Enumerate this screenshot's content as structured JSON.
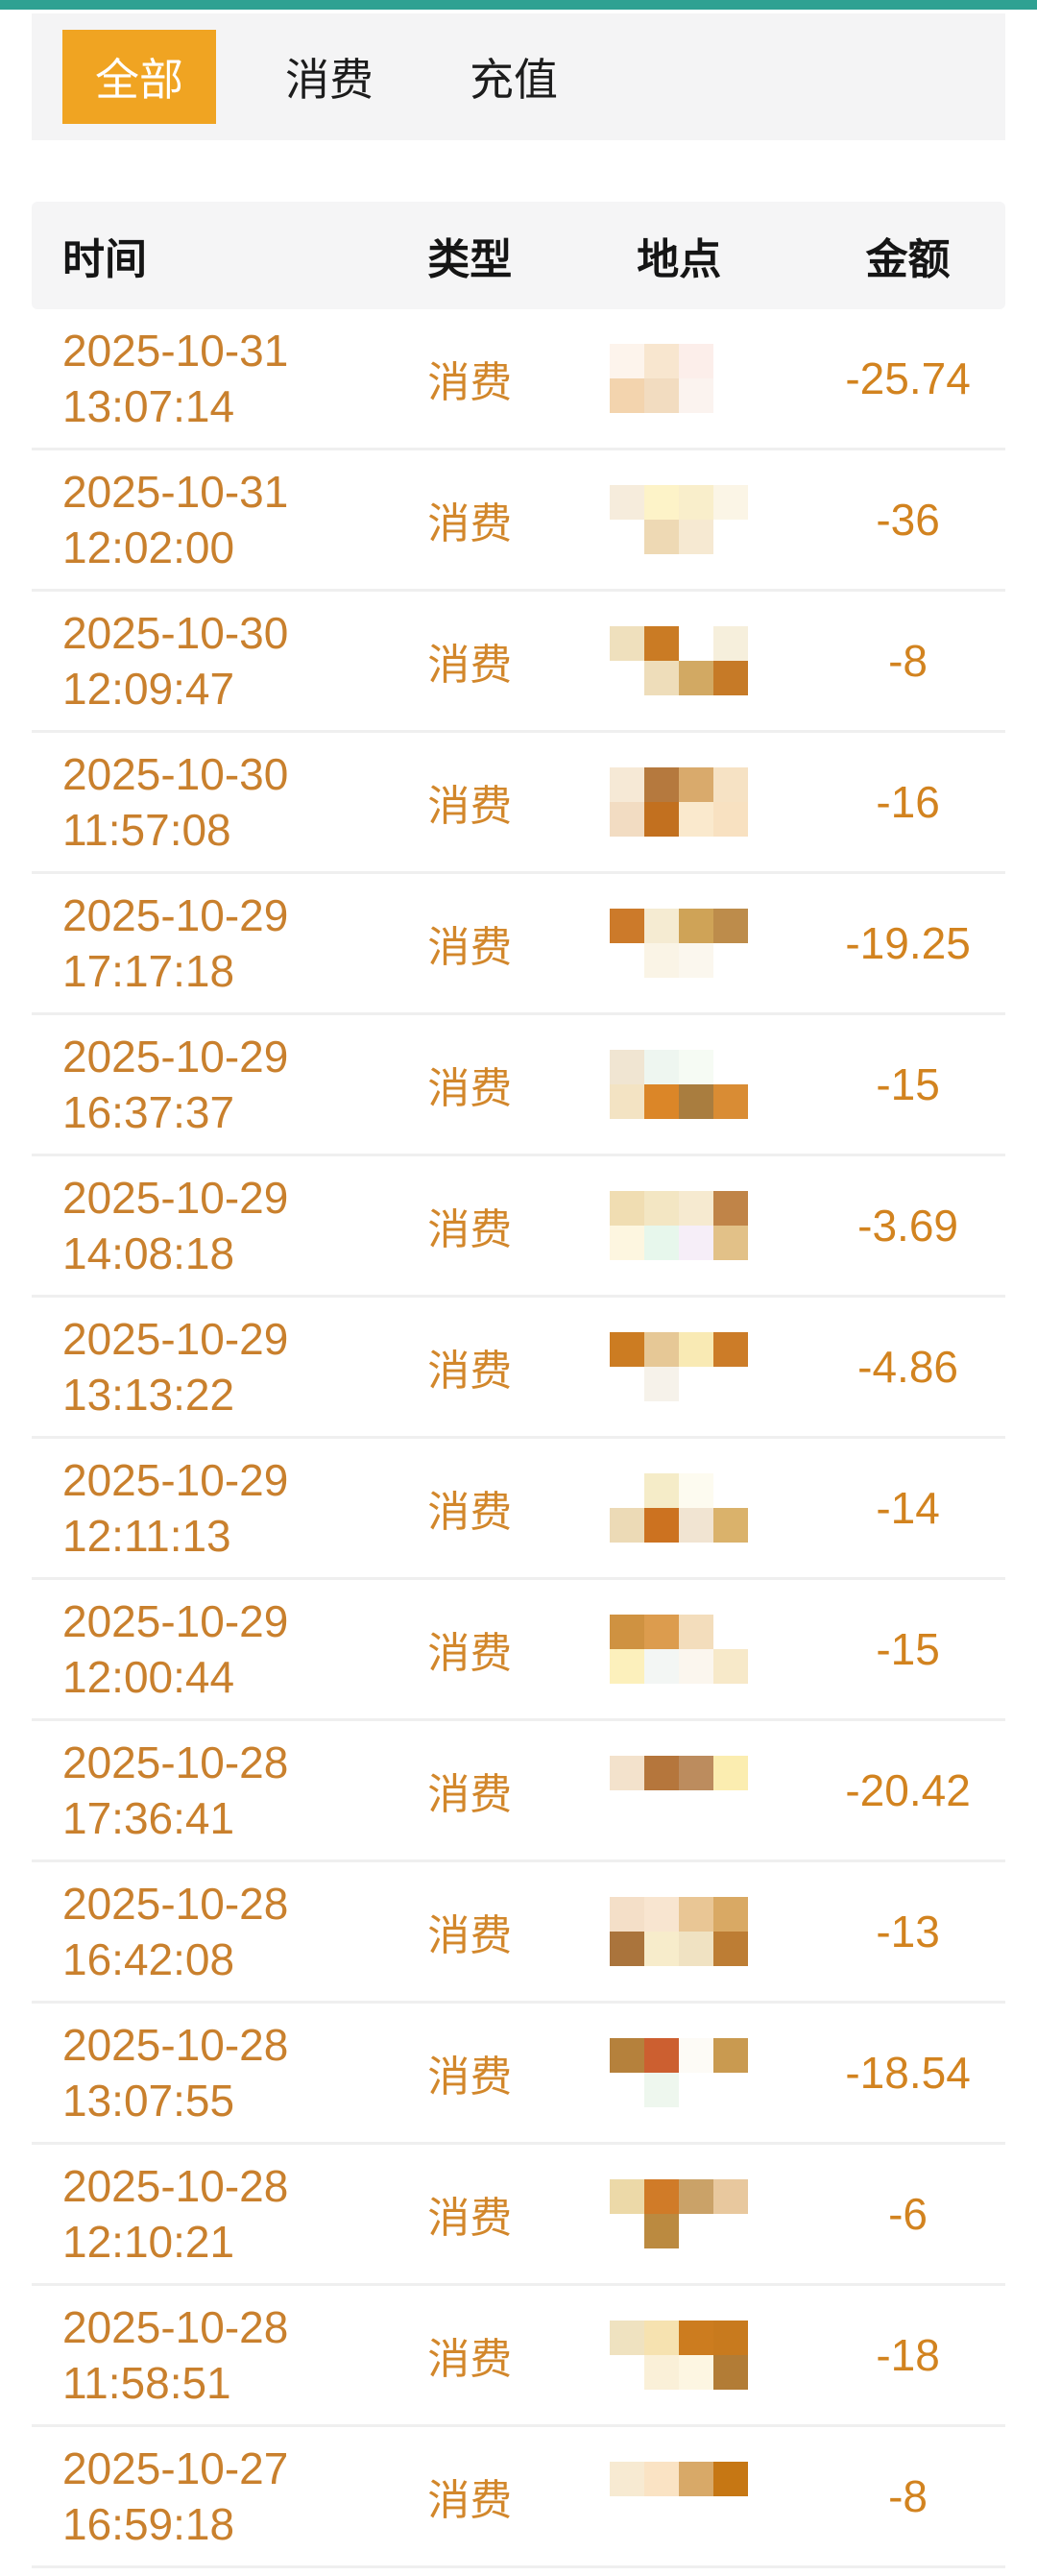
{
  "tabs": {
    "all": "全部",
    "consume": "消费",
    "recharge": "充值"
  },
  "table": {
    "headers": {
      "time": "时间",
      "type": "类型",
      "place": "地点",
      "amount": "金额"
    }
  },
  "rows": [
    {
      "date": "2025-10-31",
      "time": "13:07:14",
      "type": "消费",
      "place_redacted": true,
      "amount": "-25.74",
      "mosaic": [
        "#fdf4ec",
        "#f8e6cf",
        "#fceeea",
        "transparent",
        "#f3d4ae",
        "#f2dcc0",
        "#fbf3ef",
        "transparent"
      ]
    },
    {
      "date": "2025-10-31",
      "time": "12:02:00",
      "type": "消费",
      "place_redacted": true,
      "amount": "-36",
      "mosaic": [
        "#f6ecdc",
        "#fdf3c8",
        "#f9eecb",
        "#fbf5e6",
        "transparent",
        "#eed9b4",
        "#f6e9d2",
        "transparent"
      ]
    },
    {
      "date": "2025-10-30",
      "time": "12:09:47",
      "type": "消费",
      "place_redacted": true,
      "amount": "-8",
      "mosaic": [
        "#efe0bd",
        "#ca7b24",
        "transparent",
        "#f6efdc",
        "transparent",
        "#eeddba",
        "#d2a963",
        "#c67a27"
      ]
    },
    {
      "date": "2025-10-30",
      "time": "11:57:08",
      "type": "消费",
      "place_redacted": true,
      "amount": "-16",
      "mosaic": [
        "#f6e9d6",
        "#b5793e",
        "#d9aa6c",
        "#f6e2c4",
        "#f2dcc2",
        "#c2701f",
        "#fae9cd",
        "#f8e1c1"
      ]
    },
    {
      "date": "2025-10-29",
      "time": "17:17:18",
      "type": "消费",
      "place_redacted": true,
      "amount": "-19.25",
      "mosaic": [
        "#cc7a2a",
        "#f5ebd2",
        "#cfa357",
        "#bd8c4b",
        "transparent",
        "#faf4e6",
        "#fbf7ee",
        "transparent"
      ]
    },
    {
      "date": "2025-10-29",
      "time": "16:37:37",
      "type": "消费",
      "place_redacted": true,
      "amount": "-15",
      "mosaic": [
        "#f0e5d2",
        "#eef6f0",
        "#f6fbf4",
        "transparent",
        "#f3e3c3",
        "#db8628",
        "#a97d3f",
        "#d98c34"
      ]
    },
    {
      "date": "2025-10-29",
      "time": "14:08:18",
      "type": "消费",
      "place_redacted": true,
      "amount": "-3.69",
      "mosaic": [
        "#f0ddb2",
        "#f3e6c3",
        "#f6ead0",
        "#c08448",
        "#fdf6e0",
        "#e7f7ec",
        "#f6eef8",
        "#e2c188"
      ]
    },
    {
      "date": "2025-10-29",
      "time": "13:13:22",
      "type": "消费",
      "place_redacted": true,
      "amount": "-4.86",
      "mosaic": [
        "#cc7c22",
        "#e6c896",
        "#f9eab4",
        "#cc7c28",
        "transparent",
        "#f6f2ea",
        "transparent",
        "transparent"
      ]
    },
    {
      "date": "2025-10-29",
      "time": "12:11:13",
      "type": "消费",
      "place_redacted": true,
      "amount": "-14",
      "mosaic": [
        "transparent",
        "#f5ecc8",
        "#fdfbf0",
        "transparent",
        "#ecdab6",
        "#cc7220",
        "#f1e4d2",
        "#dab26b"
      ]
    },
    {
      "date": "2025-10-29",
      "time": "12:00:44",
      "type": "消费",
      "place_redacted": true,
      "amount": "-15",
      "mosaic": [
        "#cf9241",
        "#dc9c4e",
        "#f3ddbc",
        "transparent",
        "#fcf0bc",
        "#f3f6f4",
        "#fbf6ee",
        "#f7e9c9"
      ]
    },
    {
      "date": "2025-10-28",
      "time": "17:36:41",
      "type": "消费",
      "place_redacted": true,
      "amount": "-20.42",
      "mosaic": [
        "#f3e2cc",
        "#b5763c",
        "#bc8c5e",
        "#fbedb0",
        "transparent",
        "transparent",
        "transparent",
        "transparent"
      ]
    },
    {
      "date": "2025-10-28",
      "time": "16:42:08",
      "type": "消费",
      "place_redacted": true,
      "amount": "-13",
      "mosaic": [
        "#f4dfc8",
        "#f8e5d0",
        "#e9c695",
        "#d9a964",
        "#aa743c",
        "#f7eccb",
        "#f0e2c2",
        "#bd7d34"
      ]
    },
    {
      "date": "2025-10-28",
      "time": "13:07:55",
      "type": "消费",
      "place_redacted": true,
      "amount": "-18.54",
      "mosaic": [
        "#b5813c",
        "#cc5f30",
        "#fdfbf6",
        "#c99a50",
        "transparent",
        "#eef7ee",
        "transparent",
        "transparent"
      ]
    },
    {
      "date": "2025-10-28",
      "time": "12:10:21",
      "type": "消费",
      "place_redacted": true,
      "amount": "-6",
      "mosaic": [
        "#ecd9a8",
        "#d07b28",
        "#caa268",
        "#e8c89e",
        "transparent",
        "#bb8a40",
        "transparent",
        "transparent"
      ]
    },
    {
      "date": "2025-10-28",
      "time": "11:58:51",
      "type": "消费",
      "place_redacted": true,
      "amount": "-18",
      "mosaic": [
        "#efe2c0",
        "#f6e2b0",
        "#cc7c1f",
        "#c87a1e",
        "transparent",
        "#faf0d8",
        "#fdf6e2",
        "#b27c36"
      ]
    },
    {
      "date": "2025-10-27",
      "time": "16:59:18",
      "type": "消费",
      "place_redacted": true,
      "amount": "-8",
      "mosaic": [
        "#f7ead2",
        "#fae3c4",
        "#d8a968",
        "#c67714",
        "transparent",
        "transparent",
        "transparent",
        "transparent"
      ]
    }
  ],
  "colors": {
    "top_accent": "#2FA192",
    "tab_bar_bg": "#F4F4F5",
    "tab_active_bg": "#F0A422",
    "tab_active_text": "#FFFFFF",
    "tab_text": "#1C1C1C",
    "header_bg": "#F5F5F6",
    "header_text": "#151515",
    "date_text": "#C9802D",
    "type_text": "#D2872B",
    "amount_text": "#D2831F",
    "divider": "#EFEFEF"
  }
}
